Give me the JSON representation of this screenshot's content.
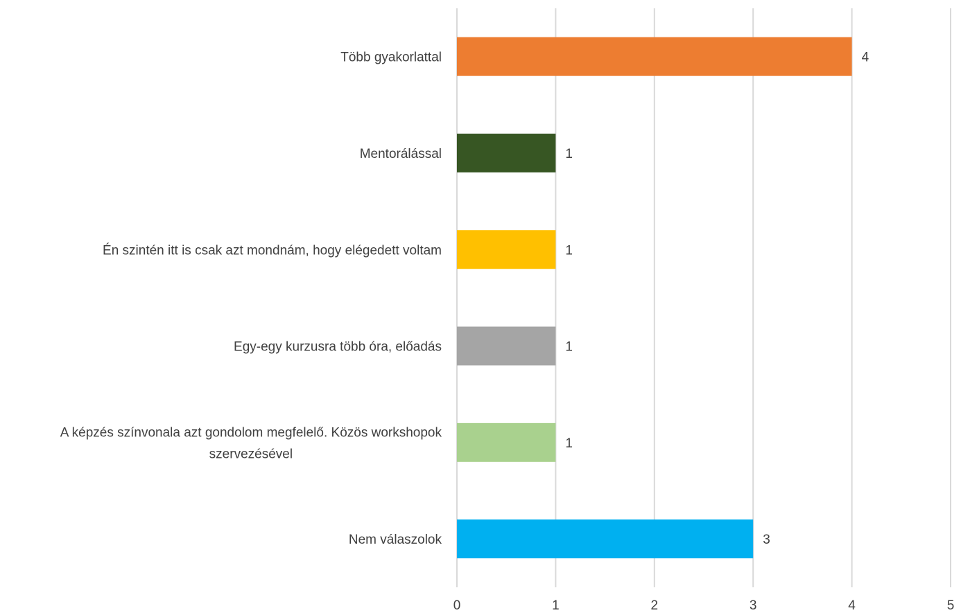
{
  "chart_data": {
    "type": "bar",
    "orientation": "horizontal",
    "title": "",
    "xlabel": "",
    "ylabel": "",
    "xlim": [
      0,
      5
    ],
    "x_ticks": [
      0,
      1,
      2,
      3,
      4,
      5
    ],
    "grid": "vertical",
    "legend": "none",
    "categories": [
      {
        "label_lines": [
          "Több gyakorlattal"
        ],
        "value": 4,
        "color": "#ED7D31"
      },
      {
        "label_lines": [
          "Mentorálással"
        ],
        "value": 1,
        "color": "#375623"
      },
      {
        "label_lines": [
          "Én szintén itt is csak azt mondnám, hogy elégedett voltam"
        ],
        "value": 1,
        "color": "#FFC000"
      },
      {
        "label_lines": [
          "Egy-egy kurzusra több óra, előadás"
        ],
        "value": 1,
        "color": "#A5A5A5"
      },
      {
        "label_lines": [
          "A képzés színvonala azt gondolom megfelelő. Közös workshopok",
          "szervezésével"
        ],
        "value": 1,
        "color": "#A9D18E"
      },
      {
        "label_lines": [
          "Nem válaszolok"
        ],
        "value": 3,
        "color": "#00B0F0"
      }
    ]
  }
}
